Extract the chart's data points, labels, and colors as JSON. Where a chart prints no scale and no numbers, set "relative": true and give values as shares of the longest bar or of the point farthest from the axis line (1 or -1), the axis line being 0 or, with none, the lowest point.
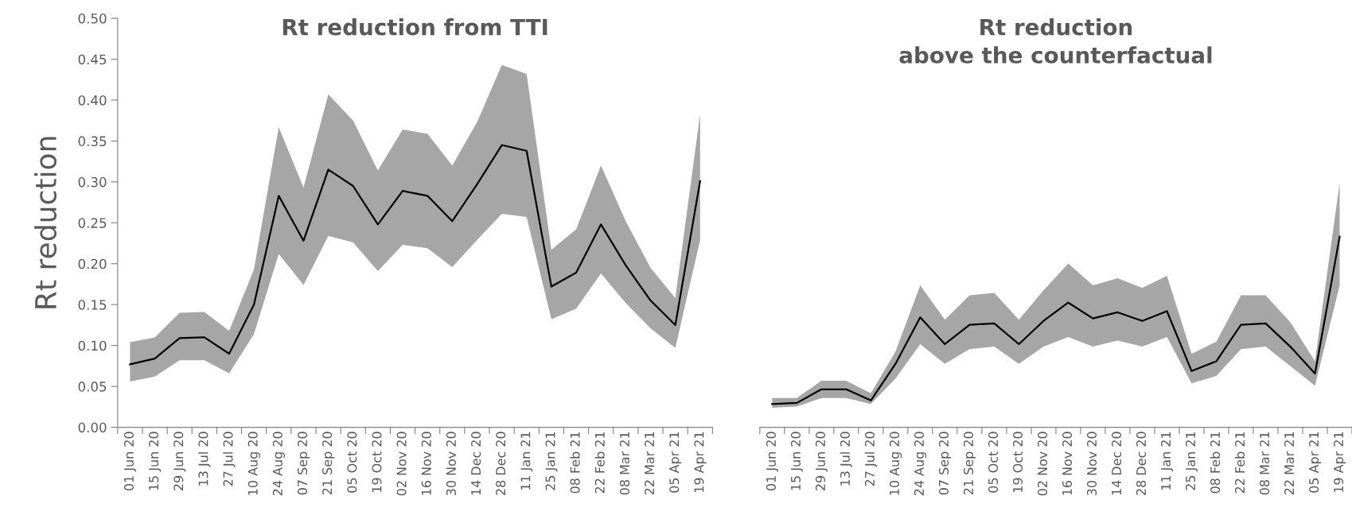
{
  "chart_data": [
    {
      "type": "line",
      "title": "Rt reduction from TTI",
      "ylabel": "Rt reduction",
      "categories": [
        "01 Jun 20",
        "15 Jun 20",
        "29 Jun 20",
        "13 Jul 20",
        "27 Jul 20",
        "10 Aug 20",
        "24 Aug 20",
        "07 Sep 20",
        "21 Sep 20",
        "05 Oct 20",
        "19 Oct 20",
        "02 Nov 20",
        "16 Nov 20",
        "30 Nov 20",
        "14 Dec 20",
        "28 Dec 20",
        "11 Jan 21",
        "25 Jan 21",
        "08 Feb 21",
        "22 Feb 21",
        "08 Mar 21",
        "22 Mar 21",
        "05 Apr 21",
        "19 Apr 21"
      ],
      "series": [
        {
          "color": "#000000",
          "values": [
            0.077,
            0.084,
            0.109,
            0.11,
            0.09,
            0.15,
            0.283,
            0.228,
            0.315,
            0.295,
            0.248,
            0.289,
            0.283,
            0.252,
            0.297,
            0.345,
            0.338,
            0.172,
            0.189,
            0.248,
            0.198,
            0.155,
            0.125,
            0.301
          ],
          "lower": [
            0.056,
            0.062,
            0.082,
            0.082,
            0.066,
            0.114,
            0.212,
            0.174,
            0.234,
            0.226,
            0.191,
            0.223,
            0.219,
            0.196,
            0.229,
            0.261,
            0.257,
            0.132,
            0.145,
            0.188,
            0.152,
            0.121,
            0.097,
            0.229
          ],
          "upper": [
            0.104,
            0.11,
            0.14,
            0.141,
            0.118,
            0.193,
            0.367,
            0.293,
            0.407,
            0.375,
            0.314,
            0.364,
            0.359,
            0.32,
            0.373,
            0.443,
            0.432,
            0.217,
            0.242,
            0.32,
            0.252,
            0.195,
            0.158,
            0.383
          ]
        }
      ],
      "ylim": [
        0,
        0.5
      ],
      "yticks": [
        {
          "value": 0,
          "label": "0.00"
        },
        {
          "value": 0.05,
          "label": "0.05"
        },
        {
          "value": 0.1,
          "label": "0.10"
        },
        {
          "value": 0.15,
          "label": "0.15"
        },
        {
          "value": 0.2,
          "label": "0.20"
        },
        {
          "value": 0.25,
          "label": "0.25"
        },
        {
          "value": 0.3,
          "label": "0.30"
        },
        {
          "value": 0.35,
          "label": "0.35"
        },
        {
          "value": 0.4,
          "label": "0.40"
        },
        {
          "value": 0.45,
          "label": "0.45"
        },
        {
          "value": 0.5,
          "label": "0.50"
        }
      ],
      "grid": false,
      "legend": false,
      "marker": "none",
      "line_style": "solid"
    },
    {
      "type": "line",
      "title": "Rt reduction\nabove the counterfactual",
      "relative": true,
      "categories": [
        "01 Jun 20",
        "15 Jun 20",
        "29 Jun 20",
        "13 Jul 20",
        "27 Jul 20",
        "10 Aug 20",
        "24 Aug 20",
        "07 Sep 20",
        "21 Sep 20",
        "05 Oct 20",
        "19 Oct 20",
        "02 Nov 20",
        "16 Nov 20",
        "30 Nov 20",
        "14 Dec 20",
        "28 Dec 20",
        "11 Jan 21",
        "25 Jan 21",
        "08 Feb 21",
        "22 Feb 21",
        "08 Mar 21",
        "22 Mar 21",
        "05 Apr 21",
        "19 Apr 21"
      ],
      "series": [
        {
          "color": "#000000",
          "values": [
            0.122,
            0.128,
            0.199,
            0.199,
            0.141,
            0.333,
            0.577,
            0.436,
            0.538,
            0.545,
            0.436,
            0.558,
            0.654,
            0.571,
            0.603,
            0.558,
            0.609,
            0.295,
            0.346,
            0.538,
            0.545,
            0.423,
            0.282,
            1
          ],
          "lower": [
            0.103,
            0.109,
            0.154,
            0.154,
            0.122,
            0.256,
            0.436,
            0.333,
            0.41,
            0.423,
            0.333,
            0.423,
            0.474,
            0.423,
            0.455,
            0.423,
            0.474,
            0.231,
            0.269,
            0.41,
            0.423,
            0.321,
            0.218,
            0.744
          ],
          "upper": [
            0.154,
            0.154,
            0.244,
            0.244,
            0.179,
            0.397,
            0.744,
            0.564,
            0.692,
            0.705,
            0.564,
            0.718,
            0.859,
            0.744,
            0.782,
            0.731,
            0.795,
            0.385,
            0.449,
            0.692,
            0.692,
            0.551,
            0.346,
            1.282
          ]
        }
      ],
      "tick_labels": "x",
      "grid": false,
      "legend": false,
      "marker": "none",
      "line_style": "solid"
    }
  ]
}
